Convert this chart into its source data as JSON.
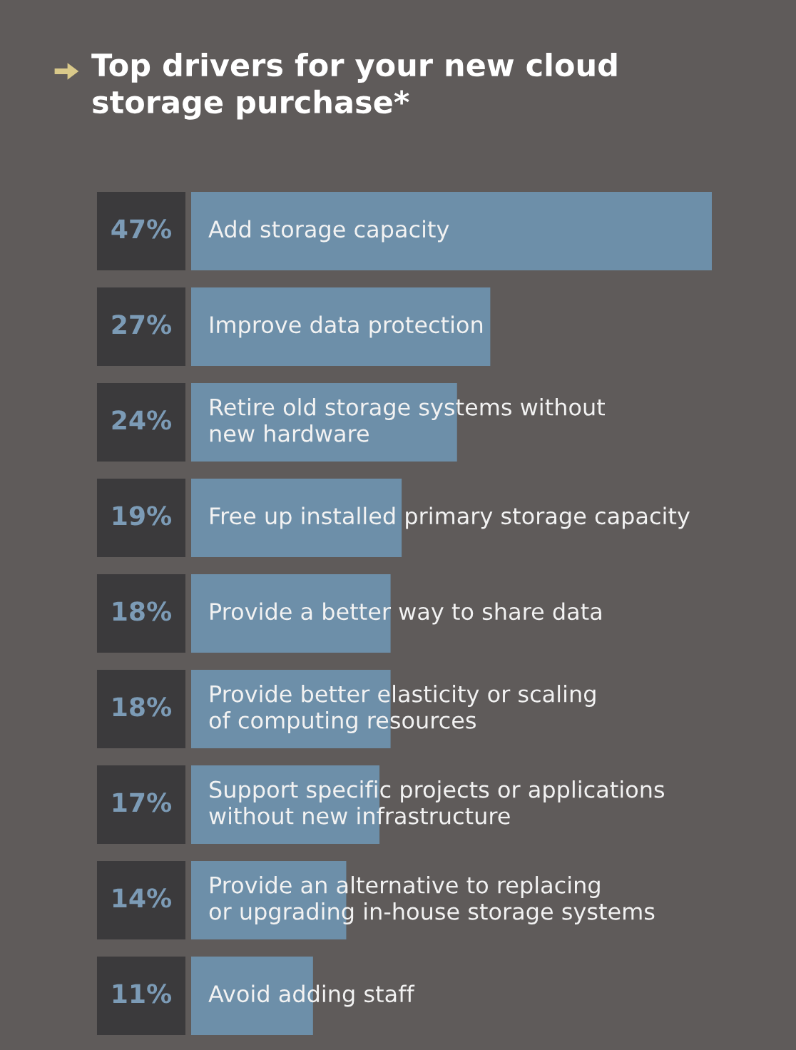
{
  "chart_data": {
    "type": "bar",
    "orientation": "horizontal",
    "title": "Top drivers for your new cloud\nstorage purchase*",
    "categories": [
      "Add storage capacity",
      "Improve data protection",
      "Retire old storage systems without\nnew hardware",
      "Free up installed primary storage capacity",
      "Provide a better way to share data",
      "Provide better elasticity or scaling\nof computing resources",
      "Support specific projects or applications\nwithout new infrastructure",
      "Provide an alternative to replacing\nor upgrading in-house storage systems",
      "Avoid adding staff"
    ],
    "values": [
      47,
      27,
      24,
      19,
      18,
      18,
      17,
      14,
      11
    ],
    "value_labels": [
      "47%",
      "27%",
      "24%",
      "19%",
      "18%",
      "18%",
      "17%",
      "14%",
      "11%"
    ],
    "color": "#6d8fa9"
  }
}
